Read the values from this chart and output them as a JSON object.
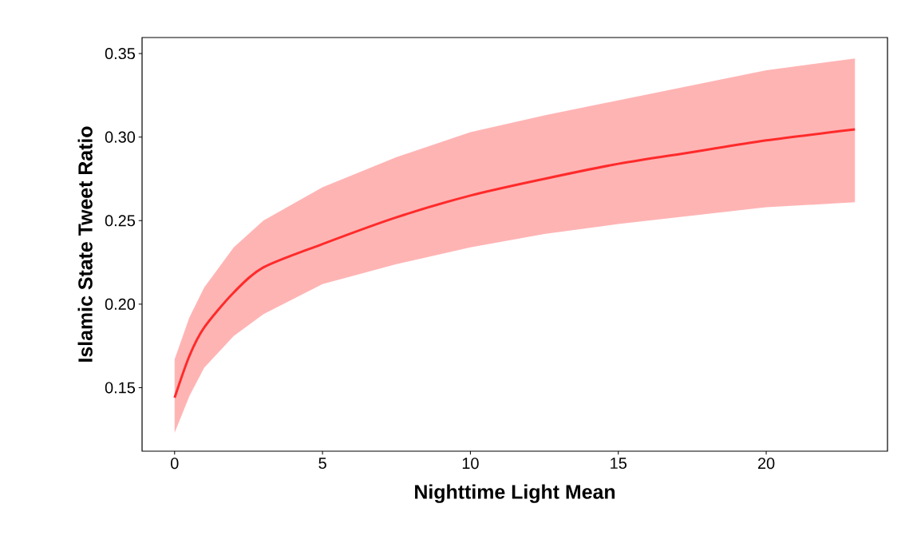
{
  "chart_data": {
    "type": "line",
    "xlabel": "Nighttime Light Mean",
    "ylabel": "Islamic State Tweet Ratio",
    "xlim": [
      -1.1,
      24.1
    ],
    "ylim": [
      0.112,
      0.3596
    ],
    "xticks": [
      0,
      5,
      10,
      15,
      20
    ],
    "yticks": [
      0.15,
      {
        "value": 0.2,
        "label": "0.20"
      },
      0.25,
      {
        "value": 0.3,
        "label": "0.30"
      },
      0.35
    ],
    "grid": false,
    "marker": "none",
    "line_style": "solid",
    "series": [
      {
        "color": "#ff2a2a",
        "x": [
          0,
          0.5,
          1,
          2,
          3,
          5,
          7.5,
          10,
          12.5,
          15,
          17.5,
          20,
          23
        ],
        "values": [
          0.144,
          0.169,
          0.186,
          0.207,
          0.222,
          0.236,
          0.252,
          0.265,
          0.275,
          0.284,
          0.291,
          0.298,
          0.3046
        ],
        "lower": [
          0.123,
          0.145,
          0.162,
          0.181,
          0.194,
          0.212,
          0.224,
          0.234,
          0.242,
          0.248,
          0.253,
          0.258,
          0.261
        ],
        "upper": [
          0.167,
          0.192,
          0.21,
          0.234,
          0.25,
          0.27,
          0.288,
          0.303,
          0.313,
          0.322,
          0.331,
          0.34,
          0.347
        ]
      }
    ]
  }
}
